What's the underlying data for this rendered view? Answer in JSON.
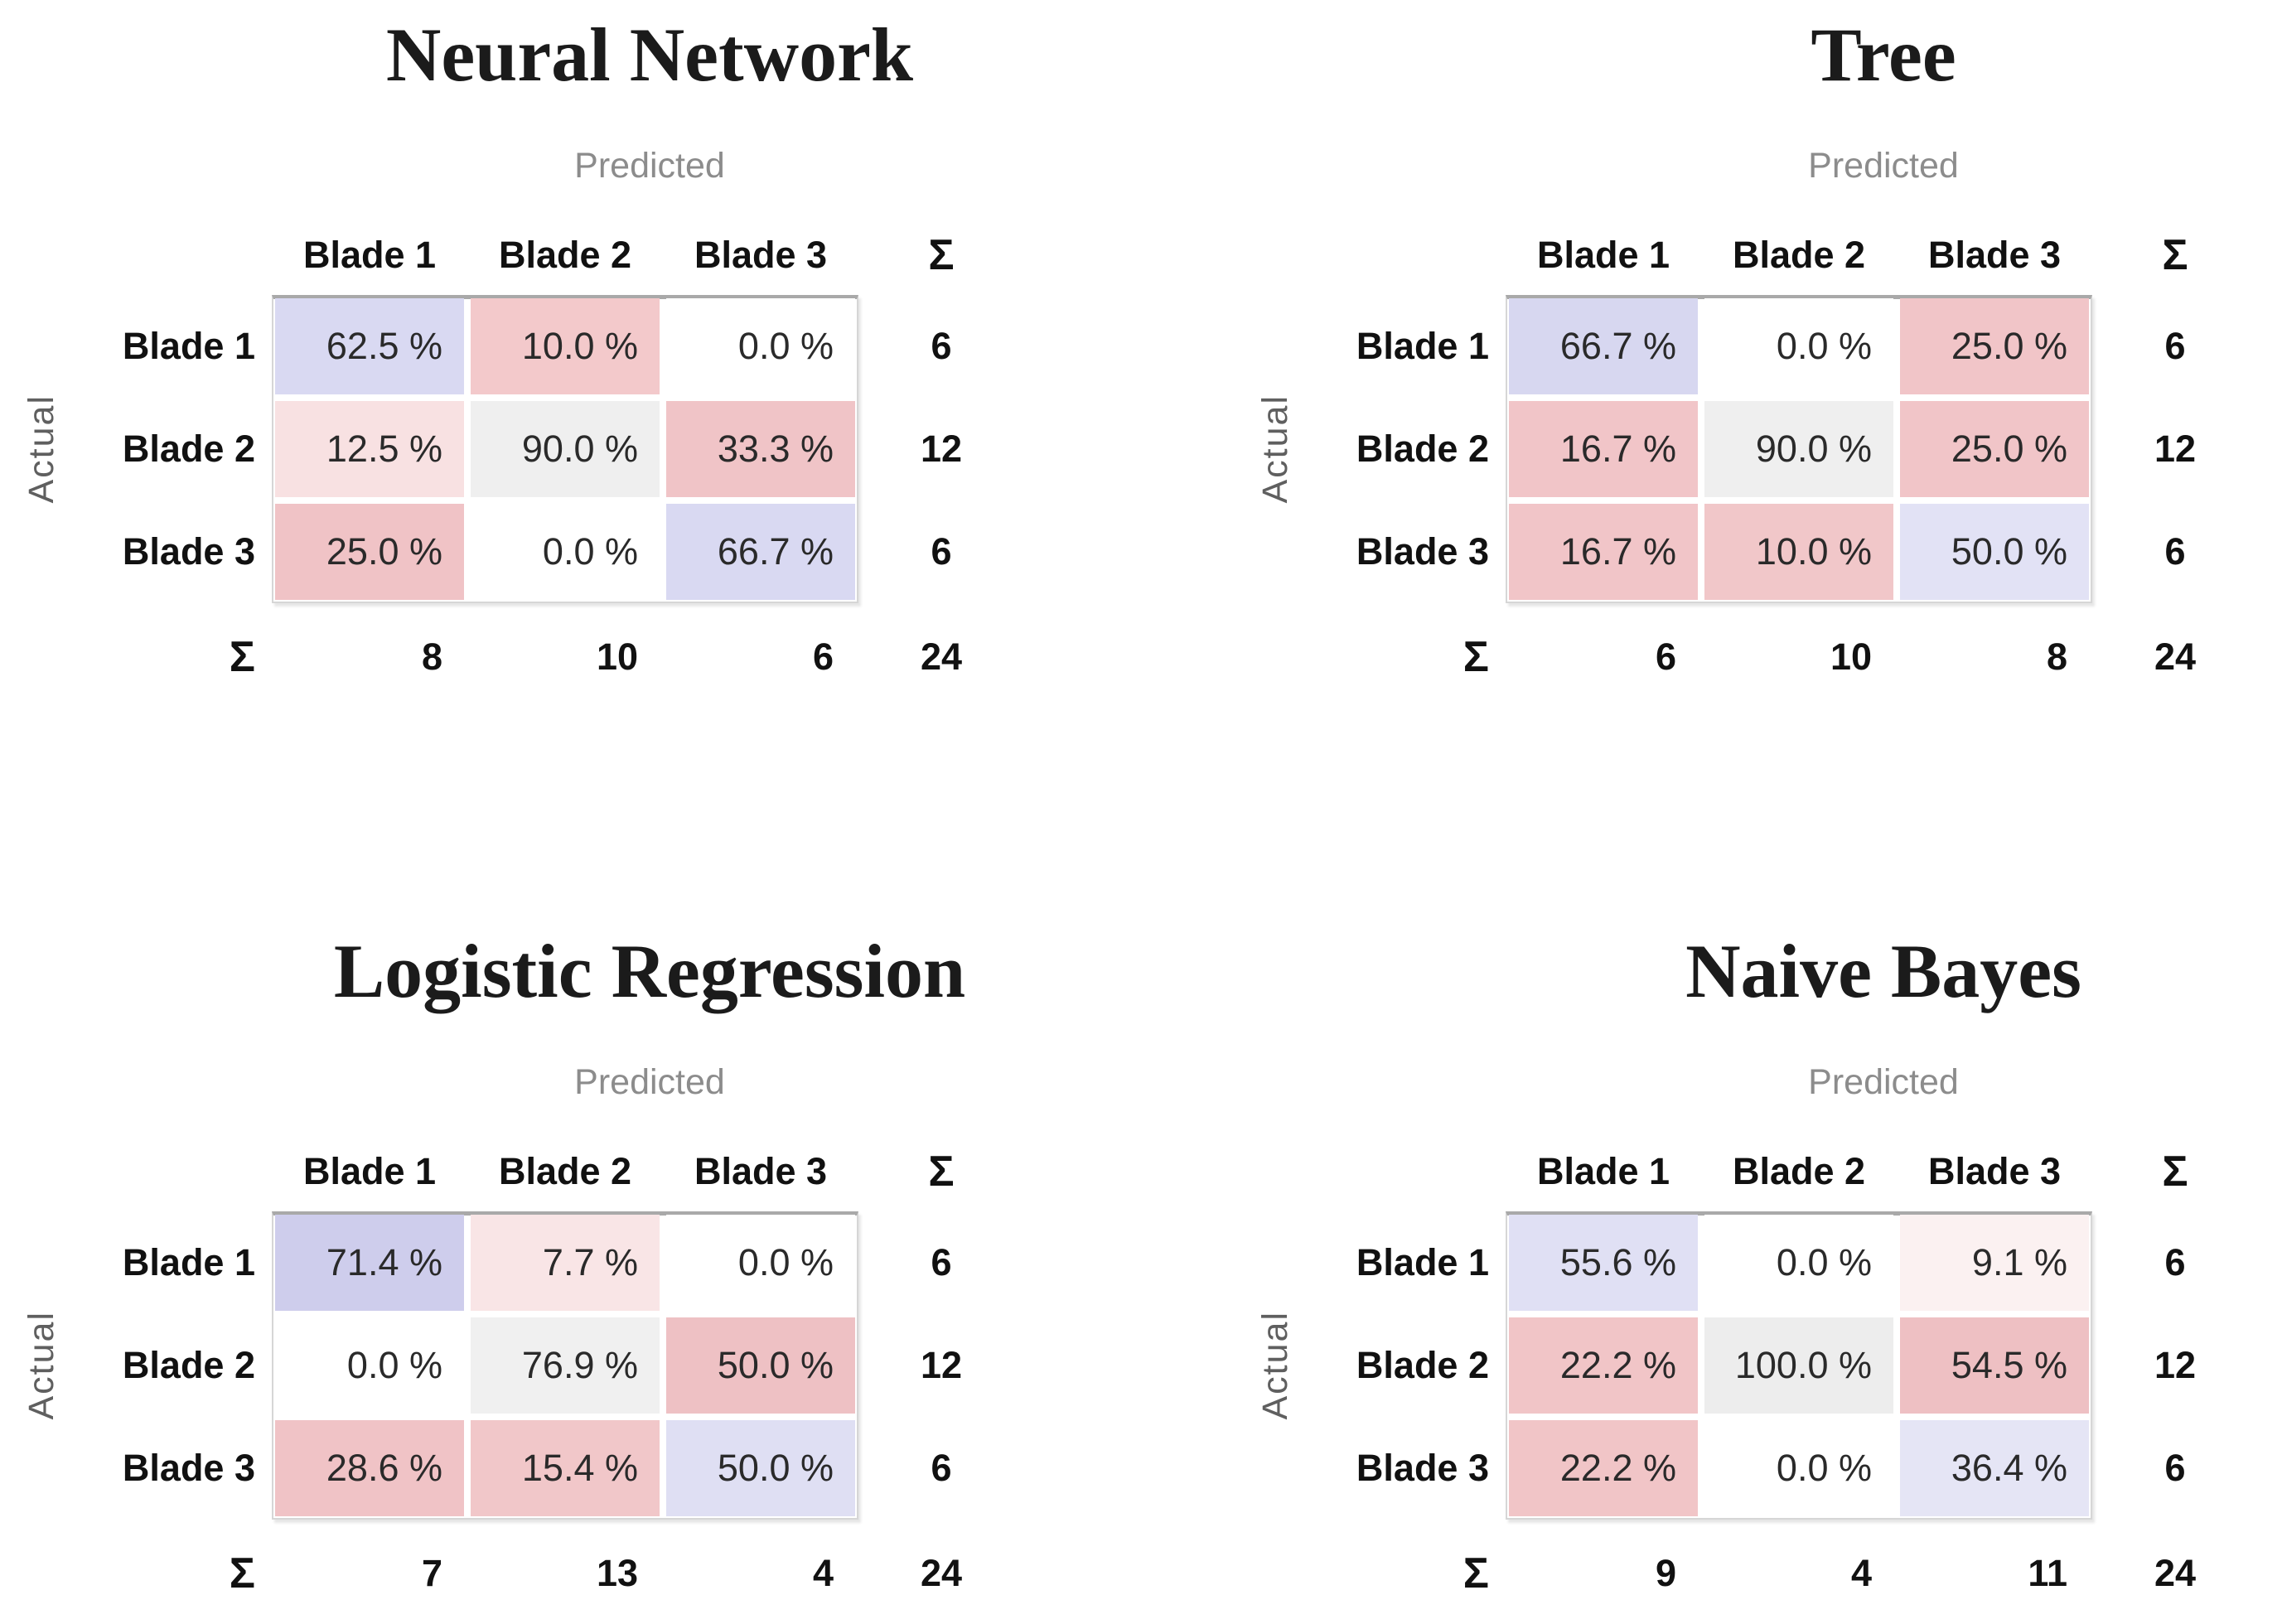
{
  "colors": {
    "diagonal_blue_strong": "#cecdec",
    "diagonal_blue_medium": "#d8d8f1",
    "diagonal_blue_light": "#e5e5f5",
    "offdiag_pink_strong": "#eec0c3",
    "offdiag_pink_light": "#f9e5e6",
    "neutral_gray_cell": "#efefef",
    "frame_border": "#d6d6d6",
    "frame_border_top": "#a9a9a9",
    "predicted_label_gray": "#8c8c8c",
    "actual_label_gray": "#5f5f5f"
  },
  "chart_data": [
    {
      "type": "heatmap",
      "title": "Neural Network",
      "xlabel": "Predicted",
      "ylabel": "Actual",
      "sum_symbol": "Σ",
      "categories": [
        "Blade 1",
        "Blade 2",
        "Blade 3"
      ],
      "values_percent": [
        [
          62.5,
          10.0,
          0.0
        ],
        [
          12.5,
          90.0,
          33.3
        ],
        [
          25.0,
          0.0,
          66.7
        ]
      ],
      "labels": [
        [
          "62.5 %",
          "10.0 %",
          "0.0 %"
        ],
        [
          "12.5 %",
          "90.0 %",
          "33.3 %"
        ],
        [
          "25.0 %",
          "0.0 %",
          "66.7 %"
        ]
      ],
      "cell_colors": [
        [
          "#d9d9f2",
          "#f3c9cb",
          "#ffffff"
        ],
        [
          "#f8e1e2",
          "#efefef",
          "#f0c4c7"
        ],
        [
          "#f0c3c6",
          "#ffffff",
          "#d9d9f2"
        ]
      ],
      "row_sums": [
        6,
        12,
        6
      ],
      "col_sums": [
        8,
        10,
        6
      ],
      "total": 24
    },
    {
      "type": "heatmap",
      "title": "Tree",
      "xlabel": "Predicted",
      "ylabel": "Actual",
      "sum_symbol": "Σ",
      "categories": [
        "Blade 1",
        "Blade 2",
        "Blade 3"
      ],
      "values_percent": [
        [
          66.7,
          0.0,
          25.0
        ],
        [
          16.7,
          90.0,
          25.0
        ],
        [
          16.7,
          10.0,
          50.0
        ]
      ],
      "labels": [
        [
          "66.7 %",
          "0.0 %",
          "25.0 %"
        ],
        [
          "16.7 %",
          "90.0 %",
          "25.0 %"
        ],
        [
          "16.7 %",
          "10.0 %",
          "50.0 %"
        ]
      ],
      "cell_colors": [
        [
          "#d7d7f0",
          "#ffffff",
          "#f1c5c8"
        ],
        [
          "#f1c5c8",
          "#efefef",
          "#f1c5c8"
        ],
        [
          "#f1c5c8",
          "#f1c7c9",
          "#e2e2f5"
        ]
      ],
      "row_sums": [
        6,
        12,
        6
      ],
      "col_sums": [
        6,
        10,
        8
      ],
      "total": 24
    },
    {
      "type": "heatmap",
      "title": "Logistic Regression",
      "xlabel": "Predicted",
      "ylabel": "Actual",
      "sum_symbol": "Σ",
      "categories": [
        "Blade 1",
        "Blade 2",
        "Blade 3"
      ],
      "values_percent": [
        [
          71.4,
          7.7,
          0.0
        ],
        [
          0.0,
          76.9,
          50.0
        ],
        [
          28.6,
          15.4,
          50.0
        ]
      ],
      "labels": [
        [
          "71.4 %",
          "7.7 %",
          "0.0 %"
        ],
        [
          "0.0 %",
          "76.9 %",
          "50.0 %"
        ],
        [
          "28.6 %",
          "15.4 %",
          "50.0 %"
        ]
      ],
      "cell_colors": [
        [
          "#cecdec",
          "#f9e5e6",
          "#ffffff"
        ],
        [
          "#ffffff",
          "#f0f0f0",
          "#eec1c4"
        ],
        [
          "#f0c3c6",
          "#f1c7c9",
          "#dfdff3"
        ]
      ],
      "row_sums": [
        6,
        12,
        6
      ],
      "col_sums": [
        7,
        13,
        4
      ],
      "total": 24
    },
    {
      "type": "heatmap",
      "title": "Naive Bayes",
      "xlabel": "Predicted",
      "ylabel": "Actual",
      "sum_symbol": "Σ",
      "categories": [
        "Blade 1",
        "Blade 2",
        "Blade 3"
      ],
      "values_percent": [
        [
          55.6,
          0.0,
          9.1
        ],
        [
          22.2,
          100.0,
          54.5
        ],
        [
          22.2,
          0.0,
          36.4
        ]
      ],
      "labels": [
        [
          "55.6 %",
          "0.0 %",
          "9.1 %"
        ],
        [
          "22.2 %",
          "100.0 %",
          "54.5 %"
        ],
        [
          "22.2 %",
          "0.0 %",
          "36.4 %"
        ]
      ],
      "cell_colors": [
        [
          "#e0e0f4",
          "#ffffff",
          "#fbf1f1"
        ],
        [
          "#f1c5c7",
          "#ededed",
          "#eec0c3"
        ],
        [
          "#f1c5c7",
          "#ffffff",
          "#e5e5f5"
        ]
      ],
      "row_sums": [
        6,
        12,
        6
      ],
      "col_sums": [
        9,
        4,
        11
      ],
      "total": 24
    }
  ]
}
